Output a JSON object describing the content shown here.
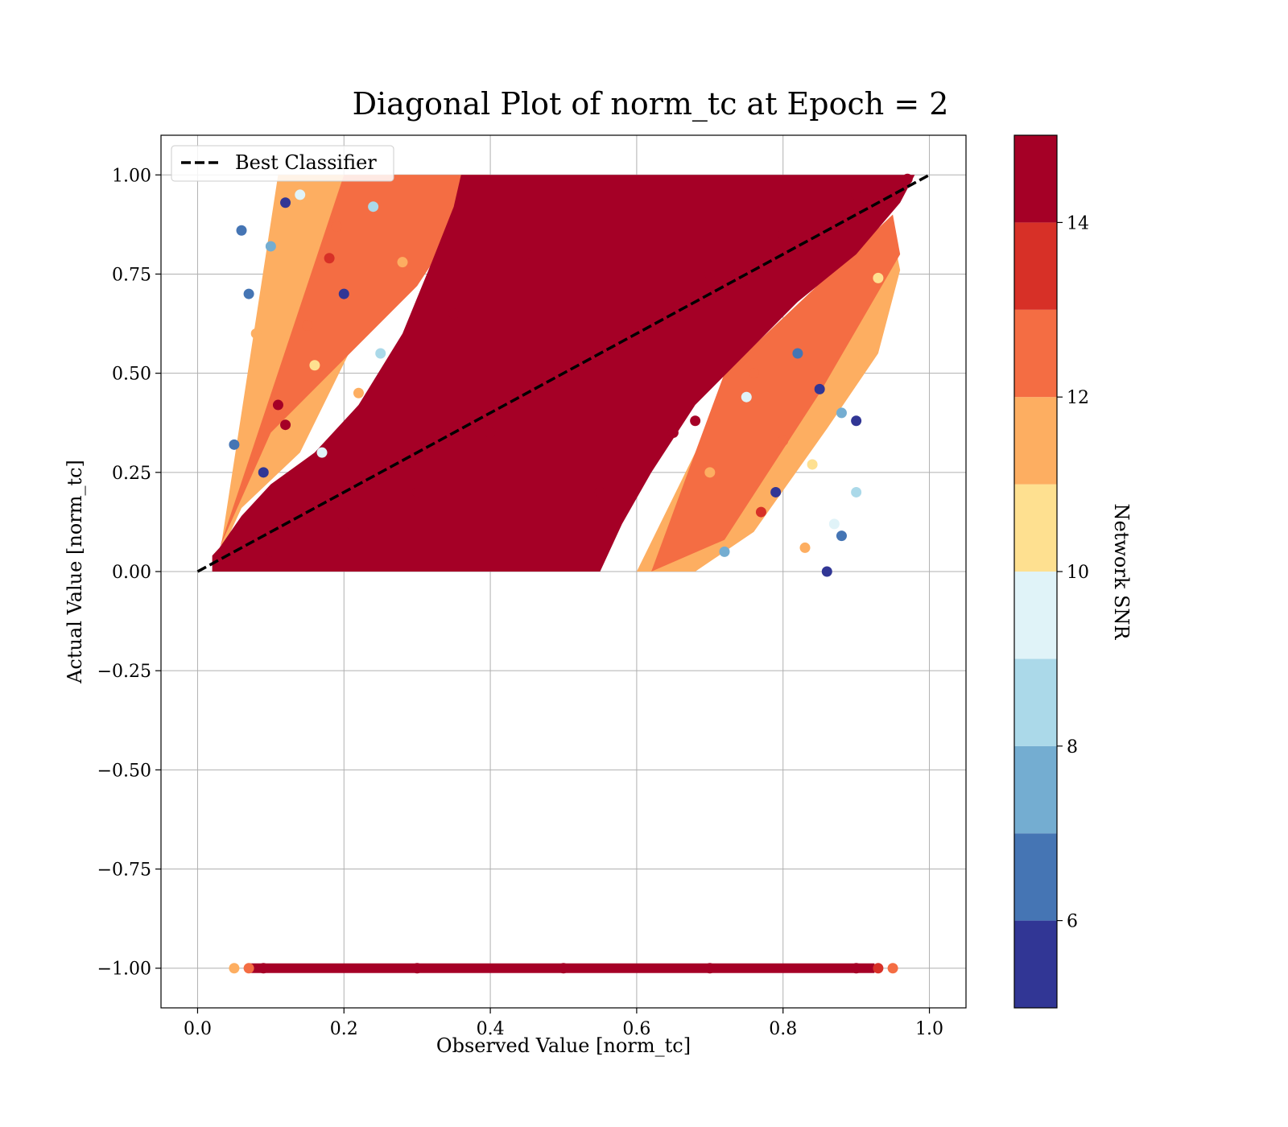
{
  "chart_data": {
    "type": "scatter",
    "title": "Diagonal Plot of norm_tc at Epoch = 2",
    "xlabel": "Observed Value [norm_tc]",
    "ylabel": "Actual Value [norm_tc]",
    "xlim": [
      -0.05,
      1.05
    ],
    "ylim": [
      -1.1,
      1.1
    ],
    "xticks": [
      0.0,
      0.2,
      0.4,
      0.6,
      0.8,
      1.0
    ],
    "xtick_labels": [
      "0.0",
      "0.2",
      "0.4",
      "0.6",
      "0.8",
      "1.0"
    ],
    "yticks": [
      1.0,
      0.75,
      0.5,
      0.25,
      0.0,
      -0.25,
      -0.5,
      -0.75,
      -1.0
    ],
    "ytick_labels": [
      "1.00",
      "0.75",
      "0.50",
      "0.25",
      "0.00",
      "−0.25",
      "−0.50",
      "−0.75",
      "−1.00"
    ],
    "grid": true,
    "legend": {
      "placement": "top-left",
      "entries": [
        {
          "label": "Best Classifier",
          "style": "dashed",
          "color": "#000000"
        }
      ]
    },
    "reference_line": {
      "label": "Best Classifier",
      "x": [
        0.0,
        1.0
      ],
      "y": [
        0.0,
        1.0
      ]
    },
    "colorbar": {
      "label": "Network SNR",
      "range": [
        5,
        15
      ],
      "ticks": [
        6,
        8,
        10,
        12,
        14
      ],
      "tick_labels": [
        "6",
        "8",
        "10",
        "12",
        "14"
      ],
      "colors": [
        "#313695",
        "#4575b4",
        "#74add1",
        "#abd9e9",
        "#e0f3f8",
        "#fee090",
        "#fdae61",
        "#f46d43",
        "#d73027",
        "#a50026"
      ]
    },
    "series": [
      {
        "description_of_distribution": "main",
        "points": [
          [
            0.03,
            0.02,
            14.5
          ],
          [
            0.1,
            0.05,
            14.5
          ],
          [
            0.2,
            0.1,
            14.5
          ],
          [
            0.3,
            0.2,
            14.5
          ],
          [
            0.4,
            0.35,
            14.5
          ],
          [
            0.5,
            0.5,
            14.5
          ],
          [
            0.6,
            0.6,
            14.5
          ],
          [
            0.7,
            0.75,
            14.5
          ],
          [
            0.8,
            0.85,
            14.5
          ],
          [
            0.9,
            0.95,
            14.5
          ],
          [
            0.97,
            0.99,
            14.5
          ],
          [
            0.45,
            0.8,
            14.5
          ],
          [
            0.55,
            0.2,
            14.5
          ],
          [
            0.35,
            0.65,
            14.5
          ],
          [
            0.65,
            0.35,
            14.5
          ]
        ]
      },
      {
        "description_of_distribution": "scatter_upper_left",
        "points": [
          [
            0.06,
            0.86,
            6.5
          ],
          [
            0.1,
            0.82,
            7.5
          ],
          [
            0.12,
            0.93,
            5.5
          ],
          [
            0.14,
            0.95,
            9.5
          ],
          [
            0.15,
            0.62,
            12.5
          ],
          [
            0.18,
            0.79,
            13.5
          ],
          [
            0.2,
            0.7,
            5.5
          ],
          [
            0.22,
            0.45,
            11.5
          ],
          [
            0.12,
            0.37,
            14.5
          ],
          [
            0.09,
            0.25,
            5.5
          ],
          [
            0.07,
            0.7,
            6.5
          ],
          [
            0.25,
            0.55,
            8.5
          ],
          [
            0.16,
            0.52,
            10.5
          ],
          [
            0.05,
            0.32,
            6.5
          ],
          [
            0.11,
            0.42,
            14.5
          ],
          [
            0.19,
            0.87,
            12.5
          ],
          [
            0.24,
            0.92,
            8.5
          ],
          [
            0.28,
            0.78,
            11.5
          ],
          [
            0.08,
            0.6,
            11.5
          ],
          [
            0.17,
            0.3,
            9.5
          ]
        ]
      },
      {
        "description_of_distribution": "scatter_lower_right",
        "points": [
          [
            0.82,
            0.55,
            6.5
          ],
          [
            0.85,
            0.46,
            5.5
          ],
          [
            0.88,
            0.4,
            7.5
          ],
          [
            0.9,
            0.38,
            5.5
          ],
          [
            0.91,
            0.54,
            11.5
          ],
          [
            0.86,
            0.0,
            5.5
          ],
          [
            0.88,
            0.09,
            6.5
          ],
          [
            0.9,
            0.2,
            8.5
          ],
          [
            0.84,
            0.27,
            10.5
          ],
          [
            0.8,
            0.33,
            12.5
          ],
          [
            0.77,
            0.15,
            13.5
          ],
          [
            0.75,
            0.44,
            9.5
          ],
          [
            0.72,
            0.05,
            7.5
          ],
          [
            0.7,
            0.25,
            11.5
          ],
          [
            0.68,
            0.38,
            14.5
          ],
          [
            0.83,
            0.06,
            11.5
          ],
          [
            0.79,
            0.2,
            5.5
          ],
          [
            0.93,
            0.74,
            10.5
          ],
          [
            0.87,
            0.12,
            9.5
          ],
          [
            0.76,
            0.5,
            12.5
          ]
        ]
      },
      {
        "description_of_distribution": "minus_one_row",
        "points": [
          [
            0.05,
            -1.0,
            11.5
          ],
          [
            0.07,
            -1.0,
            12.5
          ],
          [
            0.09,
            -1.0,
            14.5
          ],
          [
            0.3,
            -1.0,
            14.5
          ],
          [
            0.5,
            -1.0,
            14.5
          ],
          [
            0.7,
            -1.0,
            14.5
          ],
          [
            0.9,
            -1.0,
            14.5
          ],
          [
            0.93,
            -1.0,
            13.5
          ],
          [
            0.95,
            -1.0,
            12.5
          ]
        ]
      }
    ]
  }
}
